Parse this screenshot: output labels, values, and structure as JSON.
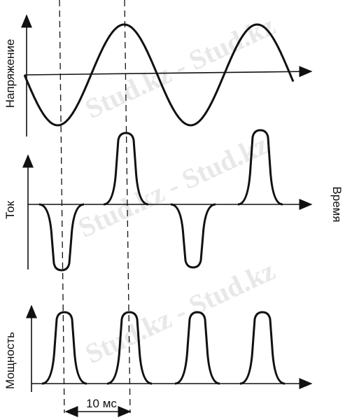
{
  "labels": {
    "voltage": "Напряжение",
    "current": "Ток",
    "time": "Время",
    "power": "Мощность",
    "interval": "10 мс"
  },
  "watermark": "Stud.kz - Stud.kz"
}
